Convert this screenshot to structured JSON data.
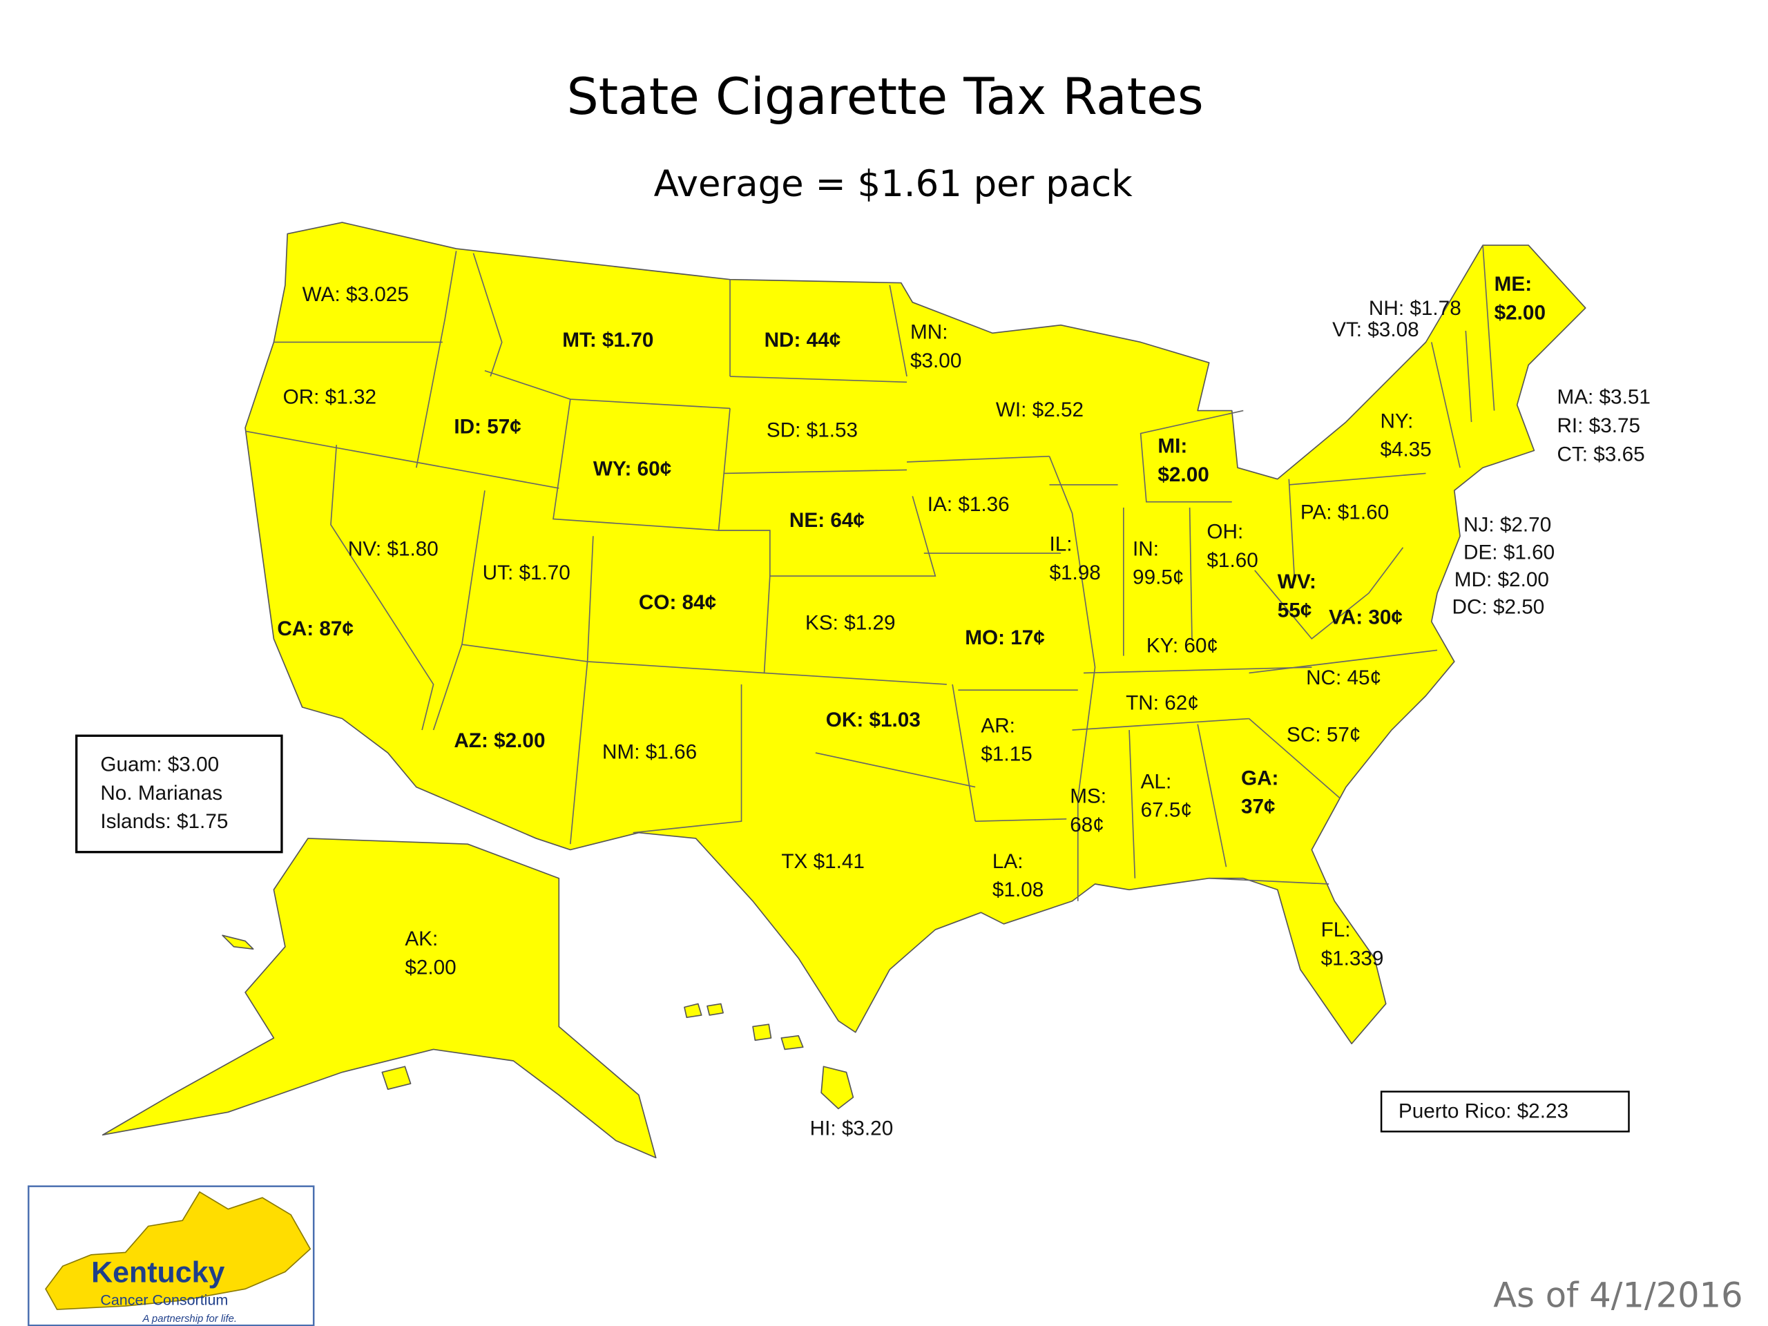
{
  "title": "State Cigarette Tax Rates",
  "subtitle": "Average = $1.61 per pack",
  "states": [
    {
      "lines": [
        "WA: $3.025"
      ]
    },
    {
      "lines": [
        "OR: $1.32"
      ]
    },
    {
      "lines": [
        "CA: 87¢"
      ]
    },
    {
      "lines": [
        "NV: $1.80"
      ]
    },
    {
      "lines": [
        "ID: 57¢"
      ]
    },
    {
      "lines": [
        "MT: $1.70"
      ]
    },
    {
      "lines": [
        "WY: 60¢"
      ]
    },
    {
      "lines": [
        "UT: $1.70"
      ]
    },
    {
      "lines": [
        "AZ: $2.00"
      ]
    },
    {
      "lines": [
        "CO: 84¢"
      ]
    },
    {
      "lines": [
        "NM: $1.66"
      ]
    },
    {
      "lines": [
        "ND: 44¢"
      ]
    },
    {
      "lines": [
        "SD: $1.53"
      ]
    },
    {
      "lines": [
        "NE: 64¢"
      ]
    },
    {
      "lines": [
        "KS: $1.29"
      ]
    },
    {
      "lines": [
        "OK: $1.03"
      ]
    },
    {
      "lines": [
        "TX $1.41"
      ]
    },
    {
      "lines": [
        "MN:",
        "$3.00"
      ]
    },
    {
      "lines": [
        "IA: $1.36"
      ]
    },
    {
      "lines": [
        "MO: 17¢"
      ]
    },
    {
      "lines": [
        "AR:",
        "$1.15"
      ]
    },
    {
      "lines": [
        "LA:",
        "$1.08"
      ]
    },
    {
      "lines": [
        "WI: $2.52"
      ]
    },
    {
      "lines": [
        "IL:",
        "$1.98"
      ]
    },
    {
      "lines": [
        "MI:",
        "$2.00"
      ]
    },
    {
      "lines": [
        "IN:",
        "99.5¢"
      ]
    },
    {
      "lines": [
        "OH:",
        "$1.60"
      ]
    },
    {
      "lines": [
        "KY: 60¢"
      ]
    },
    {
      "lines": [
        "TN: 62¢"
      ]
    },
    {
      "lines": [
        "MS:",
        "68¢"
      ]
    },
    {
      "lines": [
        "AL:",
        "67.5¢"
      ]
    },
    {
      "lines": [
        "GA:",
        "37¢"
      ]
    },
    {
      "lines": [
        "FL:",
        "$1.339"
      ]
    },
    {
      "lines": [
        "SC: 57¢"
      ]
    },
    {
      "lines": [
        "NC: 45¢"
      ]
    },
    {
      "lines": [
        "VA: 30¢"
      ]
    },
    {
      "lines": [
        "WV:",
        "55¢"
      ]
    },
    {
      "lines": [
        "PA: $1.60"
      ]
    },
    {
      "lines": [
        "NY:",
        "$4.35"
      ]
    },
    {
      "lines": [
        "VT: $3.08"
      ]
    },
    {
      "lines": [
        "NH: $1.78"
      ]
    },
    {
      "lines": [
        "ME:",
        "$2.00"
      ]
    },
    {
      "lines": [
        "MA: $3.51"
      ]
    },
    {
      "lines": [
        "RI: $3.75"
      ]
    },
    {
      "lines": [
        "CT: $3.65"
      ]
    },
    {
      "lines": [
        "NJ: $2.70"
      ]
    },
    {
      "lines": [
        "DE: $1.60"
      ]
    },
    {
      "lines": [
        "MD: $2.00"
      ]
    },
    {
      "lines": [
        "DC: $2.50"
      ]
    },
    {
      "lines": [
        "AK:",
        "$2.00"
      ]
    },
    {
      "lines": [
        "HI: $3.20"
      ]
    }
  ],
  "territories_box": {
    "lines": [
      "Guam: $3.00",
      "No. Marianas",
      "Islands: $1.75"
    ]
  },
  "puerto_rico": "Puerto Rico: $2.23",
  "logo": {
    "name": "Kentucky",
    "org": "Cancer Consortium",
    "tagline": "A partnership for life."
  },
  "date_note": "As of 4/1/2016"
}
